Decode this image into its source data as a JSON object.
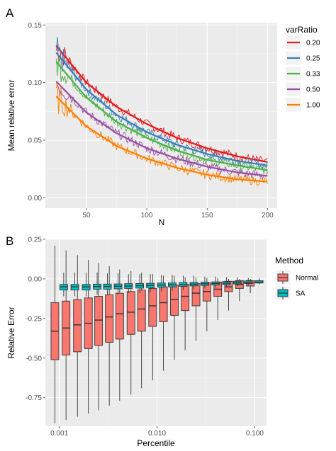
{
  "chart_data": [
    {
      "panel_label": "A",
      "type": "line",
      "xlabel": "N",
      "ylabel": "Mean relative error",
      "xlim": [
        16,
        208
      ],
      "ylim": [
        -0.009,
        0.152
      ],
      "xticks": [
        50,
        100,
        150,
        200
      ],
      "yticks": [
        0.0,
        0.05,
        0.1,
        0.15
      ],
      "ytick_labels": [
        "0.00",
        "0.05",
        "0.10",
        "0.15"
      ],
      "grid": true,
      "legend_title": "varRatio",
      "legend_position": "right",
      "x_range": [
        25,
        200
      ],
      "series": [
        {
          "name": "0.20",
          "color": "#e41a1c",
          "fitted": {
            "n_points": [
              25,
              50,
              75,
              100,
              125,
              150,
              175,
              200
            ],
            "values": [
              0.132,
              0.1,
              0.079,
              0.064,
              0.052,
              0.043,
              0.036,
              0.031
            ]
          }
        },
        {
          "name": "0.25",
          "color": "#377eb8",
          "fitted": {
            "n_points": [
              25,
              50,
              75,
              100,
              125,
              150,
              175,
              200
            ],
            "values": [
              0.126,
              0.094,
              0.072,
              0.057,
              0.046,
              0.038,
              0.032,
              0.028
            ]
          }
        },
        {
          "name": "0.33",
          "color": "#4daf4a",
          "fitted": {
            "n_points": [
              25,
              50,
              75,
              100,
              125,
              150,
              175,
              200
            ],
            "values": [
              0.118,
              0.087,
              0.066,
              0.052,
              0.041,
              0.033,
              0.028,
              0.024
            ]
          }
        },
        {
          "name": "0.50",
          "color": "#984ea3",
          "fitted": {
            "n_points": [
              25,
              50,
              75,
              100,
              125,
              150,
              175,
              200
            ],
            "values": [
              0.101,
              0.074,
              0.056,
              0.043,
              0.034,
              0.027,
              0.022,
              0.019
            ]
          }
        },
        {
          "name": "1.00",
          "color": "#ff7f00",
          "fitted": {
            "n_points": [
              25,
              50,
              75,
              100,
              125,
              150,
              175,
              200
            ],
            "values": [
              0.088,
              0.062,
              0.045,
              0.034,
              0.026,
              0.02,
              0.016,
              0.014
            ]
          }
        }
      ]
    },
    {
      "panel_label": "B",
      "type": "box",
      "xlabel": "Percentile",
      "ylabel": "Relative Error",
      "x_scale": "log",
      "xlim": [
        0.00072,
        0.132
      ],
      "ylim": [
        -0.93,
        0.25
      ],
      "xticks": [
        0.001,
        0.01,
        0.1
      ],
      "xtick_labels": [
        "0.001",
        "0.010",
        "0.100"
      ],
      "yticks": [
        -0.75,
        -0.5,
        -0.25,
        0.0,
        0.25
      ],
      "ytick_labels": [
        "-0.75",
        "-0.50",
        "-0.25",
        "0.00",
        "0.25"
      ],
      "grid": true,
      "legend_title": "Method",
      "legend_position": "right",
      "categories": [
        0.001,
        0.0013,
        0.0017,
        0.0022,
        0.0028,
        0.0036,
        0.0046,
        0.006,
        0.0077,
        0.01,
        0.0129,
        0.0167,
        0.0215,
        0.0278,
        0.0359,
        0.0464,
        0.0599,
        0.0774,
        0.1
      ],
      "series": [
        {
          "name": "Normal",
          "color": "#f8766d",
          "boxes": [
            {
              "x": 0.001,
              "min": -0.91,
              "q1": -0.51,
              "median": -0.33,
              "q3": -0.15,
              "max": 0.21
            },
            {
              "x": 0.0013,
              "min": -0.89,
              "q1": -0.48,
              "median": -0.31,
              "q3": -0.14,
              "max": 0.18
            },
            {
              "x": 0.0017,
              "min": -0.87,
              "q1": -0.46,
              "median": -0.29,
              "q3": -0.13,
              "max": 0.15
            },
            {
              "x": 0.0022,
              "min": -0.85,
              "q1": -0.44,
              "median": -0.28,
              "q3": -0.12,
              "max": 0.12
            },
            {
              "x": 0.0028,
              "min": -0.83,
              "q1": -0.42,
              "median": -0.26,
              "q3": -0.11,
              "max": 0.1
            },
            {
              "x": 0.0036,
              "min": -0.8,
              "q1": -0.4,
              "median": -0.24,
              "q3": -0.1,
              "max": 0.08
            },
            {
              "x": 0.0046,
              "min": -0.77,
              "q1": -0.38,
              "median": -0.22,
              "q3": -0.09,
              "max": 0.06
            },
            {
              "x": 0.006,
              "min": -0.73,
              "q1": -0.35,
              "median": -0.21,
              "q3": -0.08,
              "max": 0.05
            },
            {
              "x": 0.0077,
              "min": -0.69,
              "q1": -0.33,
              "median": -0.19,
              "q3": -0.07,
              "max": 0.04
            },
            {
              "x": 0.01,
              "min": -0.64,
              "q1": -0.3,
              "median": -0.17,
              "q3": -0.06,
              "max": 0.03
            },
            {
              "x": 0.0129,
              "min": -0.58,
              "q1": -0.27,
              "median": -0.15,
              "q3": -0.05,
              "max": 0.02
            },
            {
              "x": 0.0167,
              "min": -0.51,
              "q1": -0.23,
              "median": -0.13,
              "q3": -0.04,
              "max": 0.02
            },
            {
              "x": 0.0215,
              "min": -0.45,
              "q1": -0.2,
              "median": -0.11,
              "q3": -0.035,
              "max": 0.01
            },
            {
              "x": 0.0278,
              "min": -0.39,
              "q1": -0.17,
              "median": -0.09,
              "q3": -0.03,
              "max": 0.01
            },
            {
              "x": 0.0359,
              "min": -0.33,
              "q1": -0.14,
              "median": -0.08,
              "q3": -0.025,
              "max": 0.005
            },
            {
              "x": 0.0464,
              "min": -0.26,
              "q1": -0.11,
              "median": -0.065,
              "q3": -0.02,
              "max": 0.005
            },
            {
              "x": 0.0599,
              "min": -0.2,
              "q1": -0.08,
              "median": -0.05,
              "q3": -0.015,
              "max": 0.0
            },
            {
              "x": 0.0774,
              "min": -0.14,
              "q1": -0.06,
              "median": -0.035,
              "q3": -0.01,
              "max": 0.0
            },
            {
              "x": 0.1,
              "min": -0.09,
              "q1": -0.045,
              "median": -0.025,
              "q3": -0.01,
              "max": 0.0
            }
          ]
        },
        {
          "name": "SA",
          "color": "#00bfc4",
          "boxes": [
            {
              "x": 0.001,
              "min": -0.11,
              "q1": -0.07,
              "median": -0.05,
              "q3": -0.035,
              "max": 0.04
            },
            {
              "x": 0.0013,
              "min": -0.11,
              "q1": -0.07,
              "median": -0.05,
              "q3": -0.035,
              "max": 0.04
            },
            {
              "x": 0.0017,
              "min": -0.11,
              "q1": -0.07,
              "median": -0.05,
              "q3": -0.035,
              "max": 0.04
            },
            {
              "x": 0.0022,
              "min": -0.1,
              "q1": -0.065,
              "median": -0.048,
              "q3": -0.033,
              "max": 0.04
            },
            {
              "x": 0.0028,
              "min": -0.1,
              "q1": -0.065,
              "median": -0.048,
              "q3": -0.033,
              "max": 0.035
            },
            {
              "x": 0.0036,
              "min": -0.1,
              "q1": -0.063,
              "median": -0.046,
              "q3": -0.032,
              "max": 0.035
            },
            {
              "x": 0.0046,
              "min": -0.09,
              "q1": -0.06,
              "median": -0.045,
              "q3": -0.03,
              "max": 0.03
            },
            {
              "x": 0.006,
              "min": -0.09,
              "q1": -0.058,
              "median": -0.043,
              "q3": -0.029,
              "max": 0.03
            },
            {
              "x": 0.0077,
              "min": -0.085,
              "q1": -0.055,
              "median": -0.041,
              "q3": -0.028,
              "max": 0.03
            },
            {
              "x": 0.01,
              "min": -0.08,
              "q1": -0.052,
              "median": -0.039,
              "q3": -0.026,
              "max": 0.025
            },
            {
              "x": 0.0129,
              "min": -0.075,
              "q1": -0.05,
              "median": -0.037,
              "q3": -0.025,
              "max": 0.025
            },
            {
              "x": 0.0167,
              "min": -0.07,
              "q1": -0.047,
              "median": -0.035,
              "q3": -0.023,
              "max": 0.02
            },
            {
              "x": 0.0215,
              "min": -0.065,
              "q1": -0.044,
              "median": -0.033,
              "q3": -0.022,
              "max": 0.02
            },
            {
              "x": 0.0278,
              "min": -0.06,
              "q1": -0.041,
              "median": -0.031,
              "q3": -0.02,
              "max": 0.015
            },
            {
              "x": 0.0359,
              "min": -0.055,
              "q1": -0.038,
              "median": -0.029,
              "q3": -0.019,
              "max": 0.015
            },
            {
              "x": 0.0464,
              "min": -0.05,
              "q1": -0.035,
              "median": -0.027,
              "q3": -0.017,
              "max": 0.01
            },
            {
              "x": 0.0599,
              "min": -0.045,
              "q1": -0.032,
              "median": -0.025,
              "q3": -0.015,
              "max": 0.01
            },
            {
              "x": 0.0774,
              "min": -0.04,
              "q1": -0.029,
              "median": -0.022,
              "q3": -0.013,
              "max": 0.005
            },
            {
              "x": 0.1,
              "min": -0.035,
              "q1": -0.026,
              "median": -0.02,
              "q3": -0.011,
              "max": 0.005
            }
          ]
        }
      ]
    }
  ]
}
